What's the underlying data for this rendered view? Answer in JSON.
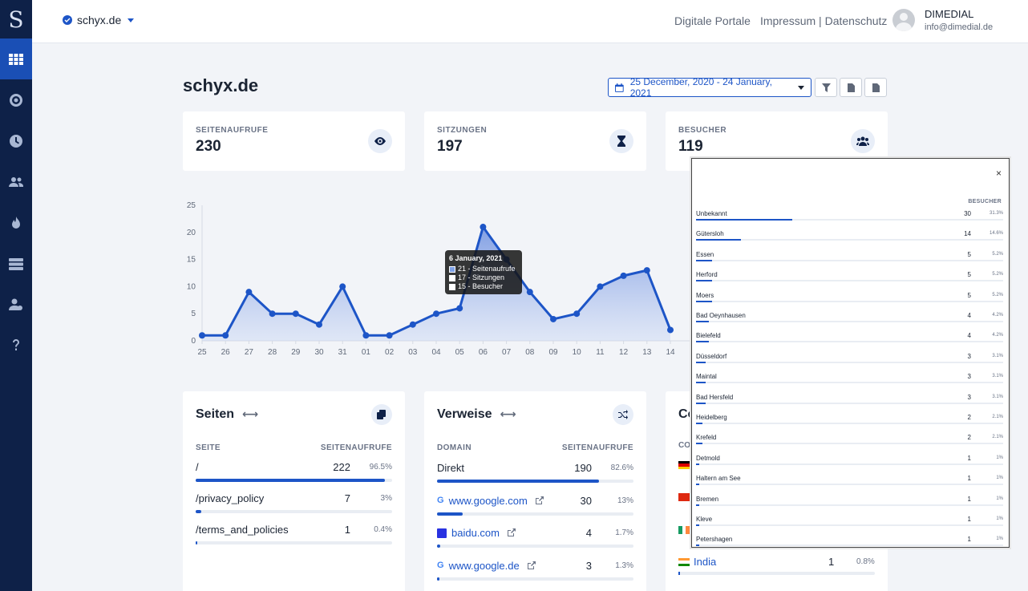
{
  "sidebar": {
    "logo": "S",
    "items": [
      {
        "icon": "grid-icon",
        "active": true
      },
      {
        "icon": "target-icon"
      },
      {
        "icon": "clock-icon"
      },
      {
        "icon": "users-icon"
      },
      {
        "icon": "fire-icon"
      },
      {
        "icon": "server-icon"
      },
      {
        "icon": "user-settings-icon"
      },
      {
        "icon": "help-icon"
      }
    ]
  },
  "topbar": {
    "site": "schyx.de",
    "links": [
      "Digitale Portale",
      "Impressum | Datenschutz"
    ],
    "user_name": "DIMEDIAL",
    "user_email": "info@dimedial.de"
  },
  "page": {
    "title": "schyx.de",
    "date_range": "25 December, 2020 - 24 January, 2021"
  },
  "stats": [
    {
      "label": "SEITENAUFRUFE",
      "value": "230",
      "icon": "eye-icon"
    },
    {
      "label": "SITZUNGEN",
      "value": "197",
      "icon": "hourglass-icon"
    },
    {
      "label": "BESUCHER",
      "value": "119",
      "icon": "users-icon"
    }
  ],
  "chart_data": {
    "type": "area",
    "x": [
      "25",
      "26",
      "27",
      "28",
      "29",
      "30",
      "31",
      "01",
      "02",
      "03",
      "04",
      "05",
      "06",
      "07",
      "08",
      "09",
      "10",
      "11",
      "12",
      "13",
      "14"
    ],
    "series": [
      {
        "name": "Seitenaufrufe",
        "values": [
          1,
          1,
          9,
          5,
          5,
          3,
          10,
          1,
          1,
          3,
          5,
          6,
          21,
          15,
          9,
          4,
          5,
          10,
          12,
          13,
          2
        ]
      }
    ],
    "ylim": [
      0,
      25
    ],
    "yticks": [
      0,
      5,
      10,
      15,
      20,
      25
    ],
    "color": "#1d55c7",
    "tooltip": {
      "title": "6 January, 2021",
      "rows": [
        "21 - Seitenaufrufe",
        "17 - Sitzungen",
        "15 - Besucher"
      ]
    }
  },
  "pages_panel": {
    "title": "Seiten",
    "col_left": "SEITE",
    "col_right": "SEITENAUFRUFE",
    "rows": [
      {
        "name": "/",
        "value": "222",
        "pct": "96.5%",
        "frac": 0.965
      },
      {
        "name": "/privacy_policy",
        "value": "7",
        "pct": "3%",
        "frac": 0.03
      },
      {
        "name": "/terms_and_policies",
        "value": "1",
        "pct": "0.4%",
        "frac": 0.004
      }
    ]
  },
  "referrers_panel": {
    "title": "Verweise",
    "col_left": "DOMAIN",
    "col_right": "SEITENAUFRUFE",
    "rows": [
      {
        "name": "Direkt",
        "value": "190",
        "pct": "82.6%",
        "frac": 0.826,
        "icon": ""
      },
      {
        "name": "www.google.com",
        "value": "30",
        "pct": "13%",
        "frac": 0.13,
        "icon": "google-icon"
      },
      {
        "name": "baidu.com",
        "value": "4",
        "pct": "1.7%",
        "frac": 0.017,
        "icon": "baidu-icon"
      },
      {
        "name": "www.google.de",
        "value": "3",
        "pct": "1.3%",
        "frac": 0.013,
        "icon": "google-icon"
      }
    ]
  },
  "countries_partial": {
    "title": "Co",
    "col_left": "CO",
    "visible_row": {
      "name": "India",
      "value": "1",
      "pct": "0.8%"
    }
  },
  "city_popup": {
    "close": "×",
    "col": "BESUCHER",
    "rows": [
      {
        "name": "Unbekannt",
        "value": "30",
        "pct": "31.3%",
        "frac": 0.313
      },
      {
        "name": "Gütersloh",
        "value": "14",
        "pct": "14.6%",
        "frac": 0.146
      },
      {
        "name": "Essen",
        "value": "5",
        "pct": "5.2%",
        "frac": 0.052
      },
      {
        "name": "Herford",
        "value": "5",
        "pct": "5.2%",
        "frac": 0.052
      },
      {
        "name": "Moers",
        "value": "5",
        "pct": "5.2%",
        "frac": 0.052
      },
      {
        "name": "Bad Oeynhausen",
        "value": "4",
        "pct": "4.2%",
        "frac": 0.042
      },
      {
        "name": "Bielefeld",
        "value": "4",
        "pct": "4.2%",
        "frac": 0.042
      },
      {
        "name": "Düsseldorf",
        "value": "3",
        "pct": "3.1%",
        "frac": 0.031
      },
      {
        "name": "Maintal",
        "value": "3",
        "pct": "3.1%",
        "frac": 0.031
      },
      {
        "name": "Bad Hersfeld",
        "value": "3",
        "pct": "3.1%",
        "frac": 0.031
      },
      {
        "name": "Heidelberg",
        "value": "2",
        "pct": "2.1%",
        "frac": 0.021
      },
      {
        "name": "Krefeld",
        "value": "2",
        "pct": "2.1%",
        "frac": 0.021
      },
      {
        "name": "Detmold",
        "value": "1",
        "pct": "1%",
        "frac": 0.01
      },
      {
        "name": "Haltern am See",
        "value": "1",
        "pct": "1%",
        "frac": 0.01
      },
      {
        "name": "Bremen",
        "value": "1",
        "pct": "1%",
        "frac": 0.01
      },
      {
        "name": "Kleve",
        "value": "1",
        "pct": "1%",
        "frac": 0.01
      },
      {
        "name": "Petershagen",
        "value": "1",
        "pct": "1%",
        "frac": 0.01
      }
    ]
  }
}
